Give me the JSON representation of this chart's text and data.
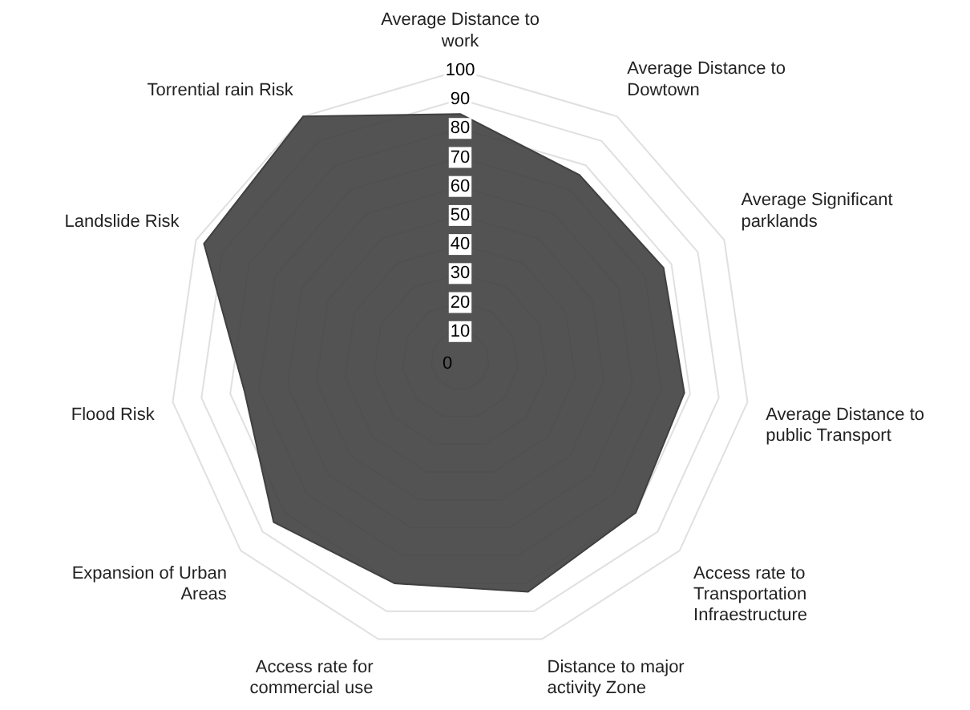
{
  "chart_data": {
    "type": "radar",
    "categories": [
      "Average Distance to work",
      "Average Distance to Dowtown",
      "Average Significant parklands",
      "Average Distance to public Transport",
      "Access rate to Transportation Infraestructure",
      "Distance to major activity Zone",
      "Access rate for commercial use",
      "Expansion of Urban Areas",
      "Flood Risk",
      "Landslide Risk",
      "Torrential rain Risk"
    ],
    "series": [
      {
        "color": "#404040",
        "values": [
          85,
          76,
          77,
          78,
          80,
          83,
          80,
          85,
          75,
          97,
          100
        ]
      }
    ],
    "ylim": [
      0,
      100
    ],
    "yticks": [
      0,
      10,
      20,
      30,
      40,
      50,
      60,
      70,
      80,
      90,
      100
    ],
    "grid": true,
    "marker": "none"
  }
}
